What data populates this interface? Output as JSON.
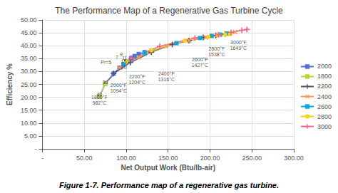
{
  "chart_data": {
    "type": "line",
    "title": "The Performance Map of a Regenerative Gas Turbine Cycle",
    "caption": "Figure 1-7. Performance map of a regenerative gas turbine.",
    "x_label": "Net Output Work (Btu/lb-air)",
    "y_label": "Efficiency %",
    "xlim": [
      0,
      300
    ],
    "ylim": [
      0,
      50
    ],
    "xticks": [
      {
        "value": 0,
        "label": "-"
      },
      {
        "value": 50,
        "label": "50.00"
      },
      {
        "value": 100,
        "label": "100.00"
      },
      {
        "value": 150,
        "label": "150.00"
      },
      {
        "value": 200,
        "label": "200.00"
      },
      {
        "value": 250,
        "label": "250.00"
      },
      {
        "value": 300,
        "label": "300.00"
      }
    ],
    "yticks": [
      {
        "value": 0,
        "label": "-"
      },
      {
        "value": 5,
        "label": "5.00"
      },
      {
        "value": 10,
        "label": "10.00"
      },
      {
        "value": 15,
        "label": "15.00"
      },
      {
        "value": 20,
        "label": "20.00"
      },
      {
        "value": 25,
        "label": "25.00"
      },
      {
        "value": 30,
        "label": "30.00"
      },
      {
        "value": 35,
        "label": "35.00"
      },
      {
        "value": 40,
        "label": "40.00"
      },
      {
        "value": 45,
        "label": "45.00"
      },
      {
        "value": 50,
        "label": "50.00"
      }
    ],
    "grid": true,
    "legend": "right",
    "isotherms": [
      {
        "color": "#888888",
        "marker": "none",
        "x": [
          68,
          75
        ],
        "values": [
          20.2,
          25.3
        ]
      },
      {
        "color": "#888888",
        "marker": "none",
        "x": [
          75,
          85,
          92
        ],
        "values": [
          25.3,
          28.5,
          31.5
        ]
      },
      {
        "color": "#bbbbbb",
        "marker": "none",
        "x": [
          92,
          105,
          122
        ],
        "values": [
          31.5,
          33.5,
          37.0
        ]
      },
      {
        "color": "#bbbbbb",
        "marker": "none",
        "x": [
          105,
          130,
          160
        ],
        "values": [
          33.5,
          37.5,
          41.0
        ]
      },
      {
        "color": "#bbbbbb",
        "marker": "none",
        "x": [
          148,
          175,
          202
        ],
        "values": [
          39.8,
          42.0,
          43.8
        ]
      },
      {
        "color": "#bbbbbb",
        "marker": "none",
        "x": [
          188,
          208,
          224
        ],
        "values": [
          43.0,
          44.0,
          44.5
        ]
      },
      {
        "color": "#bbbbbb",
        "marker": "none",
        "x": [
          218,
          230,
          244
        ],
        "values": [
          44.5,
          45.3,
          46.3
        ]
      }
    ],
    "series": [
      {
        "name": "2000",
        "marker": "square",
        "x": [
          68,
          75,
          85,
          92,
          97,
          100,
          106,
          110,
          115,
          122,
          130
        ],
        "values": [
          20.2,
          25.3,
          29.2,
          31.5,
          32.8,
          33.8,
          35.2,
          36.0,
          36.8,
          37.5,
          38.0
        ]
      },
      {
        "name": "1800",
        "marker": "square",
        "x": [
          68,
          75
        ],
        "values": [
          20.2,
          25.3
        ]
      },
      {
        "name": "2200",
        "marker": "plus",
        "x": [
          85,
          105,
          130,
          155,
          175,
          192,
          207,
          218
        ],
        "values": [
          29.2,
          33.5,
          37.5,
          40.5,
          42.0,
          43.2,
          44.0,
          44.5
        ]
      },
      {
        "name": "2400",
        "marker": "x",
        "x": [
          92,
          115,
          148,
          175,
          195,
          208,
          220,
          230
        ],
        "values": [
          31.5,
          35.5,
          39.8,
          42.0,
          43.2,
          44.0,
          44.8,
          45.3
        ]
      },
      {
        "name": "2600",
        "marker": "square",
        "x": [
          97,
          122,
          160,
          188,
          202,
          212,
          220
        ],
        "values": [
          32.8,
          37.0,
          41.0,
          43.0,
          43.8,
          44.3,
          44.7
        ]
      },
      {
        "name": "2800",
        "marker": "circle",
        "x": [
          100,
          130,
          170,
          198,
          210,
          218,
          224
        ],
        "values": [
          33.8,
          38.2,
          42.0,
          43.5,
          44.0,
          44.3,
          44.5
        ]
      },
      {
        "name": "3000",
        "marker": "plus",
        "x": [
          106,
          140,
          182,
          210,
          225,
          238,
          244
        ],
        "values": [
          35.2,
          39.8,
          43.0,
          44.3,
          45.2,
          46.0,
          46.3
        ]
      }
    ],
    "annotations": [
      {
        "text": "Pr=5",
        "x": 76,
        "y": 33.5
      },
      {
        "text": "7",
        "x": 89,
        "y": 35.5
      },
      {
        "text": "9",
        "x": 94,
        "y": 36.5
      },
      {
        "text": "11",
        "x": 98,
        "y": 35.2
      },
      {
        "text": "15",
        "x": 97,
        "y": 33.8
      },
      {
        "text": "20",
        "x": 97,
        "y": 31.5
      },
      {
        "text": "30",
        "x": 75,
        "y": 25.8
      },
      {
        "text": "40",
        "x": 68,
        "y": 21.0
      },
      {
        "text": "1800°F\n982°C",
        "x": 68,
        "y": 18.8
      },
      {
        "text": "2000°F\n1094°C",
        "x": 91,
        "y": 23.5
      },
      {
        "text": "2200°F\n1204°C",
        "x": 113,
        "y": 27.0
      },
      {
        "text": "2400°F\n1316°C",
        "x": 148,
        "y": 28.0
      },
      {
        "text": "2600°F\n1427°C",
        "x": 188,
        "y": 33.5
      },
      {
        "text": "2800°F\n1538°C",
        "x": 208,
        "y": 37.8
      },
      {
        "text": "3000°F\n1649°C",
        "x": 234,
        "y": 40.3
      }
    ]
  }
}
